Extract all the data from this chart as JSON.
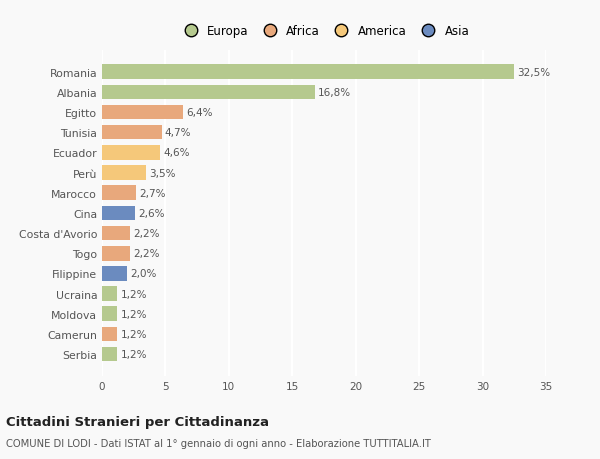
{
  "categories": [
    "Romania",
    "Albania",
    "Egitto",
    "Tunisia",
    "Ecuador",
    "Perù",
    "Marocco",
    "Cina",
    "Costa d'Avorio",
    "Togo",
    "Filippine",
    "Ucraina",
    "Moldova",
    "Camerun",
    "Serbia"
  ],
  "values": [
    32.5,
    16.8,
    6.4,
    4.7,
    4.6,
    3.5,
    2.7,
    2.6,
    2.2,
    2.2,
    2.0,
    1.2,
    1.2,
    1.2,
    1.2
  ],
  "labels": [
    "32,5%",
    "16,8%",
    "6,4%",
    "4,7%",
    "4,6%",
    "3,5%",
    "2,7%",
    "2,6%",
    "2,2%",
    "2,2%",
    "2,0%",
    "1,2%",
    "1,2%",
    "1,2%",
    "1,2%"
  ],
  "colors": [
    "#b5c98e",
    "#b5c98e",
    "#e8a87c",
    "#e8a87c",
    "#f5c87a",
    "#f5c87a",
    "#e8a87c",
    "#6b8bbf",
    "#e8a87c",
    "#e8a87c",
    "#6b8bbf",
    "#b5c98e",
    "#b5c98e",
    "#e8a87c",
    "#b5c98e"
  ],
  "legend": [
    {
      "label": "Europa",
      "color": "#b5c98e"
    },
    {
      "label": "Africa",
      "color": "#e8a87c"
    },
    {
      "label": "America",
      "color": "#f5c87a"
    },
    {
      "label": "Asia",
      "color": "#6b8bbf"
    }
  ],
  "title": "Cittadini Stranieri per Cittadinanza",
  "subtitle": "COMUNE DI LODI - Dati ISTAT al 1° gennaio di ogni anno - Elaborazione TUTTITALIA.IT",
  "xlim": [
    0,
    35
  ],
  "xticks": [
    0,
    5,
    10,
    15,
    20,
    25,
    30,
    35
  ],
  "background_color": "#f9f9f9",
  "grid_color": "#ffffff"
}
